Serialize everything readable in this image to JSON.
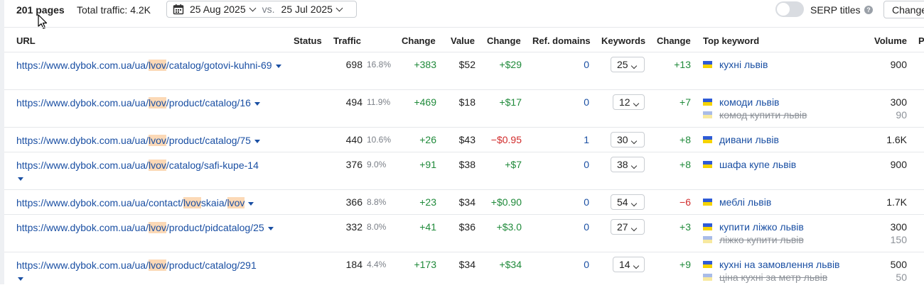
{
  "header": {
    "pages": "201 pages",
    "total_traffic": "Total traffic: 4.2K",
    "date_from": "25 Aug 2025",
    "vs": "vs.",
    "date_to": "25 Jul 2025",
    "serp_titles": "SERP titles",
    "change_button": "Change",
    "serp_toggle_on": false
  },
  "columns": {
    "url": "URL",
    "status": "Status",
    "traffic": "Traffic",
    "change1": "Change",
    "value": "Value",
    "change2": "Change",
    "ref_domains": "Ref. domains",
    "keywords": "Keywords",
    "change3": "Change",
    "top_keyword": "Top keyword",
    "volume": "Volume",
    "extra": "P"
  },
  "rows": [
    {
      "url_parts": [
        "https://www.dybok.com.ua/ua/",
        "lvov",
        "/catalog/gotovi-kuhni-69"
      ],
      "traffic": "698",
      "pct": "16.8%",
      "traffic_change": "+383",
      "value": "$52",
      "value_change": "+$29",
      "ref_domains": "0",
      "keywords": "25",
      "kw_change": "+13",
      "top_keyword": "кухні львів",
      "volume": "900",
      "second_keyword": "",
      "second_volume": ""
    },
    {
      "url_parts": [
        "https://www.dybok.com.ua/ua/",
        "lvov",
        "/product/catalog/16"
      ],
      "traffic": "494",
      "pct": "11.9%",
      "traffic_change": "+469",
      "value": "$18",
      "value_change": "+$17",
      "ref_domains": "0",
      "keywords": "12",
      "kw_change": "+7",
      "top_keyword": "комоди львів",
      "volume": "300",
      "second_keyword": "комод купити львів",
      "second_volume": "90"
    },
    {
      "url_parts": [
        "https://www.dybok.com.ua/ua/",
        "lvov",
        "/product/catalog/75"
      ],
      "traffic": "440",
      "pct": "10.6%",
      "traffic_change": "+26",
      "value": "$43",
      "value_change": "−$0.95",
      "ref_domains": "1",
      "keywords": "30",
      "kw_change": "+8",
      "top_keyword": "дивани львів",
      "volume": "1.6K",
      "second_keyword": "",
      "second_volume": ""
    },
    {
      "url_parts": [
        "https://www.dybok.com.ua/ua/",
        "lvov",
        "/catalog/safi-kupe-14"
      ],
      "traffic": "376",
      "pct": "9.0%",
      "traffic_change": "+91",
      "value": "$38",
      "value_change": "+$7",
      "ref_domains": "0",
      "keywords": "38",
      "kw_change": "+8",
      "top_keyword": "шафа купе львів",
      "volume": "900",
      "second_keyword": "",
      "second_volume": ""
    },
    {
      "url_parts": [
        "https://www.dybok.com.ua/ua/contact/",
        "lvov",
        "skaia/",
        "lvov",
        ""
      ],
      "traffic": "366",
      "pct": "8.8%",
      "traffic_change": "+23",
      "value": "$34",
      "value_change": "+$0.90",
      "ref_domains": "0",
      "keywords": "54",
      "kw_change": "−6",
      "top_keyword": "меблі львів",
      "volume": "1.7K",
      "second_keyword": "",
      "second_volume": ""
    },
    {
      "url_parts": [
        "https://www.dybok.com.ua/ua/",
        "lvov",
        "/product/pidcatalog/25"
      ],
      "traffic": "332",
      "pct": "8.0%",
      "traffic_change": "+41",
      "value": "$36",
      "value_change": "+$3.0",
      "ref_domains": "0",
      "keywords": "27",
      "kw_change": "+3",
      "top_keyword": "купити ліжко львів",
      "volume": "300",
      "second_keyword": "ліжко купити львів",
      "second_volume": "150"
    },
    {
      "url_parts": [
        "https://www.dybok.com.ua/ua/",
        "lvov",
        "/product/catalog/291"
      ],
      "traffic": "184",
      "pct": "4.4%",
      "traffic_change": "+173",
      "value": "$34",
      "value_change": "+$34",
      "ref_domains": "0",
      "keywords": "14",
      "kw_change": "+9",
      "top_keyword": "кухні на замовлення львів",
      "volume": "500",
      "second_keyword": "ціна кухні за метр львів",
      "second_volume": "50"
    }
  ]
}
